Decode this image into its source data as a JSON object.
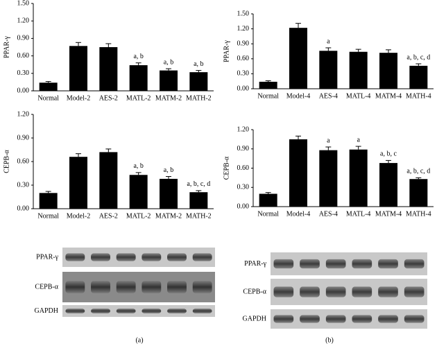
{
  "chart_data": [
    {
      "type": "bar",
      "ylabel": "PPAR-γ",
      "categories": [
        "Normal",
        "Model-2",
        "AES-2",
        "MATL-2",
        "MATM-2",
        "MATH-2"
      ],
      "values": [
        0.14,
        0.77,
        0.75,
        0.44,
        0.35,
        0.32
      ],
      "errors": [
        0.02,
        0.06,
        0.06,
        0.04,
        0.03,
        0.03
      ],
      "bar_labels": [
        null,
        null,
        null,
        "a, b",
        "a, b",
        "a, b"
      ],
      "color": "#000000",
      "ylim": [
        0,
        1.5
      ],
      "yticks": [
        {
          "value": 0,
          "label": "0.00"
        },
        {
          "value": 0.3,
          "label": "0.30"
        },
        {
          "value": 0.6,
          "label": "0.60"
        },
        {
          "value": 0.9,
          "label": "0.90"
        },
        {
          "value": 1.2,
          "label": "1.20"
        },
        {
          "value": 1.5,
          "label": "1.50"
        }
      ]
    },
    {
      "type": "bar",
      "ylabel": "PPAR-γ",
      "categories": [
        "Normal",
        "Model-4",
        "AES-4",
        "MATL-4",
        "MATM-4",
        "MATH-4"
      ],
      "values": [
        0.14,
        1.22,
        0.76,
        0.74,
        0.72,
        0.46
      ],
      "errors": [
        0.02,
        0.09,
        0.06,
        0.05,
        0.06,
        0.04
      ],
      "bar_labels": [
        null,
        null,
        "a",
        null,
        null,
        "a, b, c, d"
      ],
      "color": "#000000",
      "ylim": [
        0,
        1.5
      ],
      "yticks": [
        {
          "value": 0,
          "label": "0.00"
        },
        {
          "value": 0.3,
          "label": "0.30"
        },
        {
          "value": 0.6,
          "label": "0.60"
        },
        {
          "value": 0.9,
          "label": "0.90"
        },
        {
          "value": 1.2,
          "label": "1.20"
        },
        {
          "value": 1.5,
          "label": "1.50"
        }
      ]
    },
    {
      "type": "bar",
      "ylabel": "CEPB-α",
      "categories": [
        "Normal",
        "Model-2",
        "AES-2",
        "MATL-2",
        "MATM-2",
        "MATH-2"
      ],
      "values": [
        0.2,
        0.66,
        0.72,
        0.43,
        0.38,
        0.21
      ],
      "errors": [
        0.02,
        0.04,
        0.04,
        0.03,
        0.03,
        0.02
      ],
      "bar_labels": [
        null,
        null,
        null,
        "a, b",
        "a, b",
        "a, b, c, d"
      ],
      "color": "#000000",
      "ylim": [
        0,
        1.2
      ],
      "yticks": [
        {
          "value": 0,
          "label": "0.00"
        },
        {
          "value": 0.3,
          "label": "0.30"
        },
        {
          "value": 0.6,
          "label": "0.60"
        },
        {
          "value": 0.9,
          "label": "0.90"
        },
        {
          "value": 1.2,
          "label": "1.20"
        }
      ]
    },
    {
      "type": "bar",
      "ylabel": "CEPB-α",
      "categories": [
        "Normal",
        "Model-4",
        "AES-4",
        "MATL-4",
        "MATM-4",
        "MATH-4"
      ],
      "values": [
        0.2,
        1.05,
        0.88,
        0.89,
        0.68,
        0.43
      ],
      "errors": [
        0.02,
        0.05,
        0.05,
        0.05,
        0.04,
        0.02
      ],
      "bar_labels": [
        null,
        null,
        "a",
        "a",
        "a, b, c",
        "a, b, c, d"
      ],
      "color": "#000000",
      "ylim": [
        0,
        1.2
      ],
      "yticks": [
        {
          "value": 0,
          "label": "0.00"
        },
        {
          "value": 0.3,
          "label": "0.30"
        },
        {
          "value": 0.6,
          "label": "0.60"
        },
        {
          "value": 0.9,
          "label": "0.90"
        },
        {
          "value": 1.2,
          "label": "1.20"
        }
      ]
    }
  ],
  "blots": {
    "a": {
      "rows": [
        "PPAR-γ",
        "CEPB-α",
        "GAPDH"
      ],
      "caption": "(a)"
    },
    "b": {
      "rows": [
        "PPAR-γ",
        "CEPB-α",
        "GAPDH"
      ],
      "caption": "(b)"
    }
  }
}
